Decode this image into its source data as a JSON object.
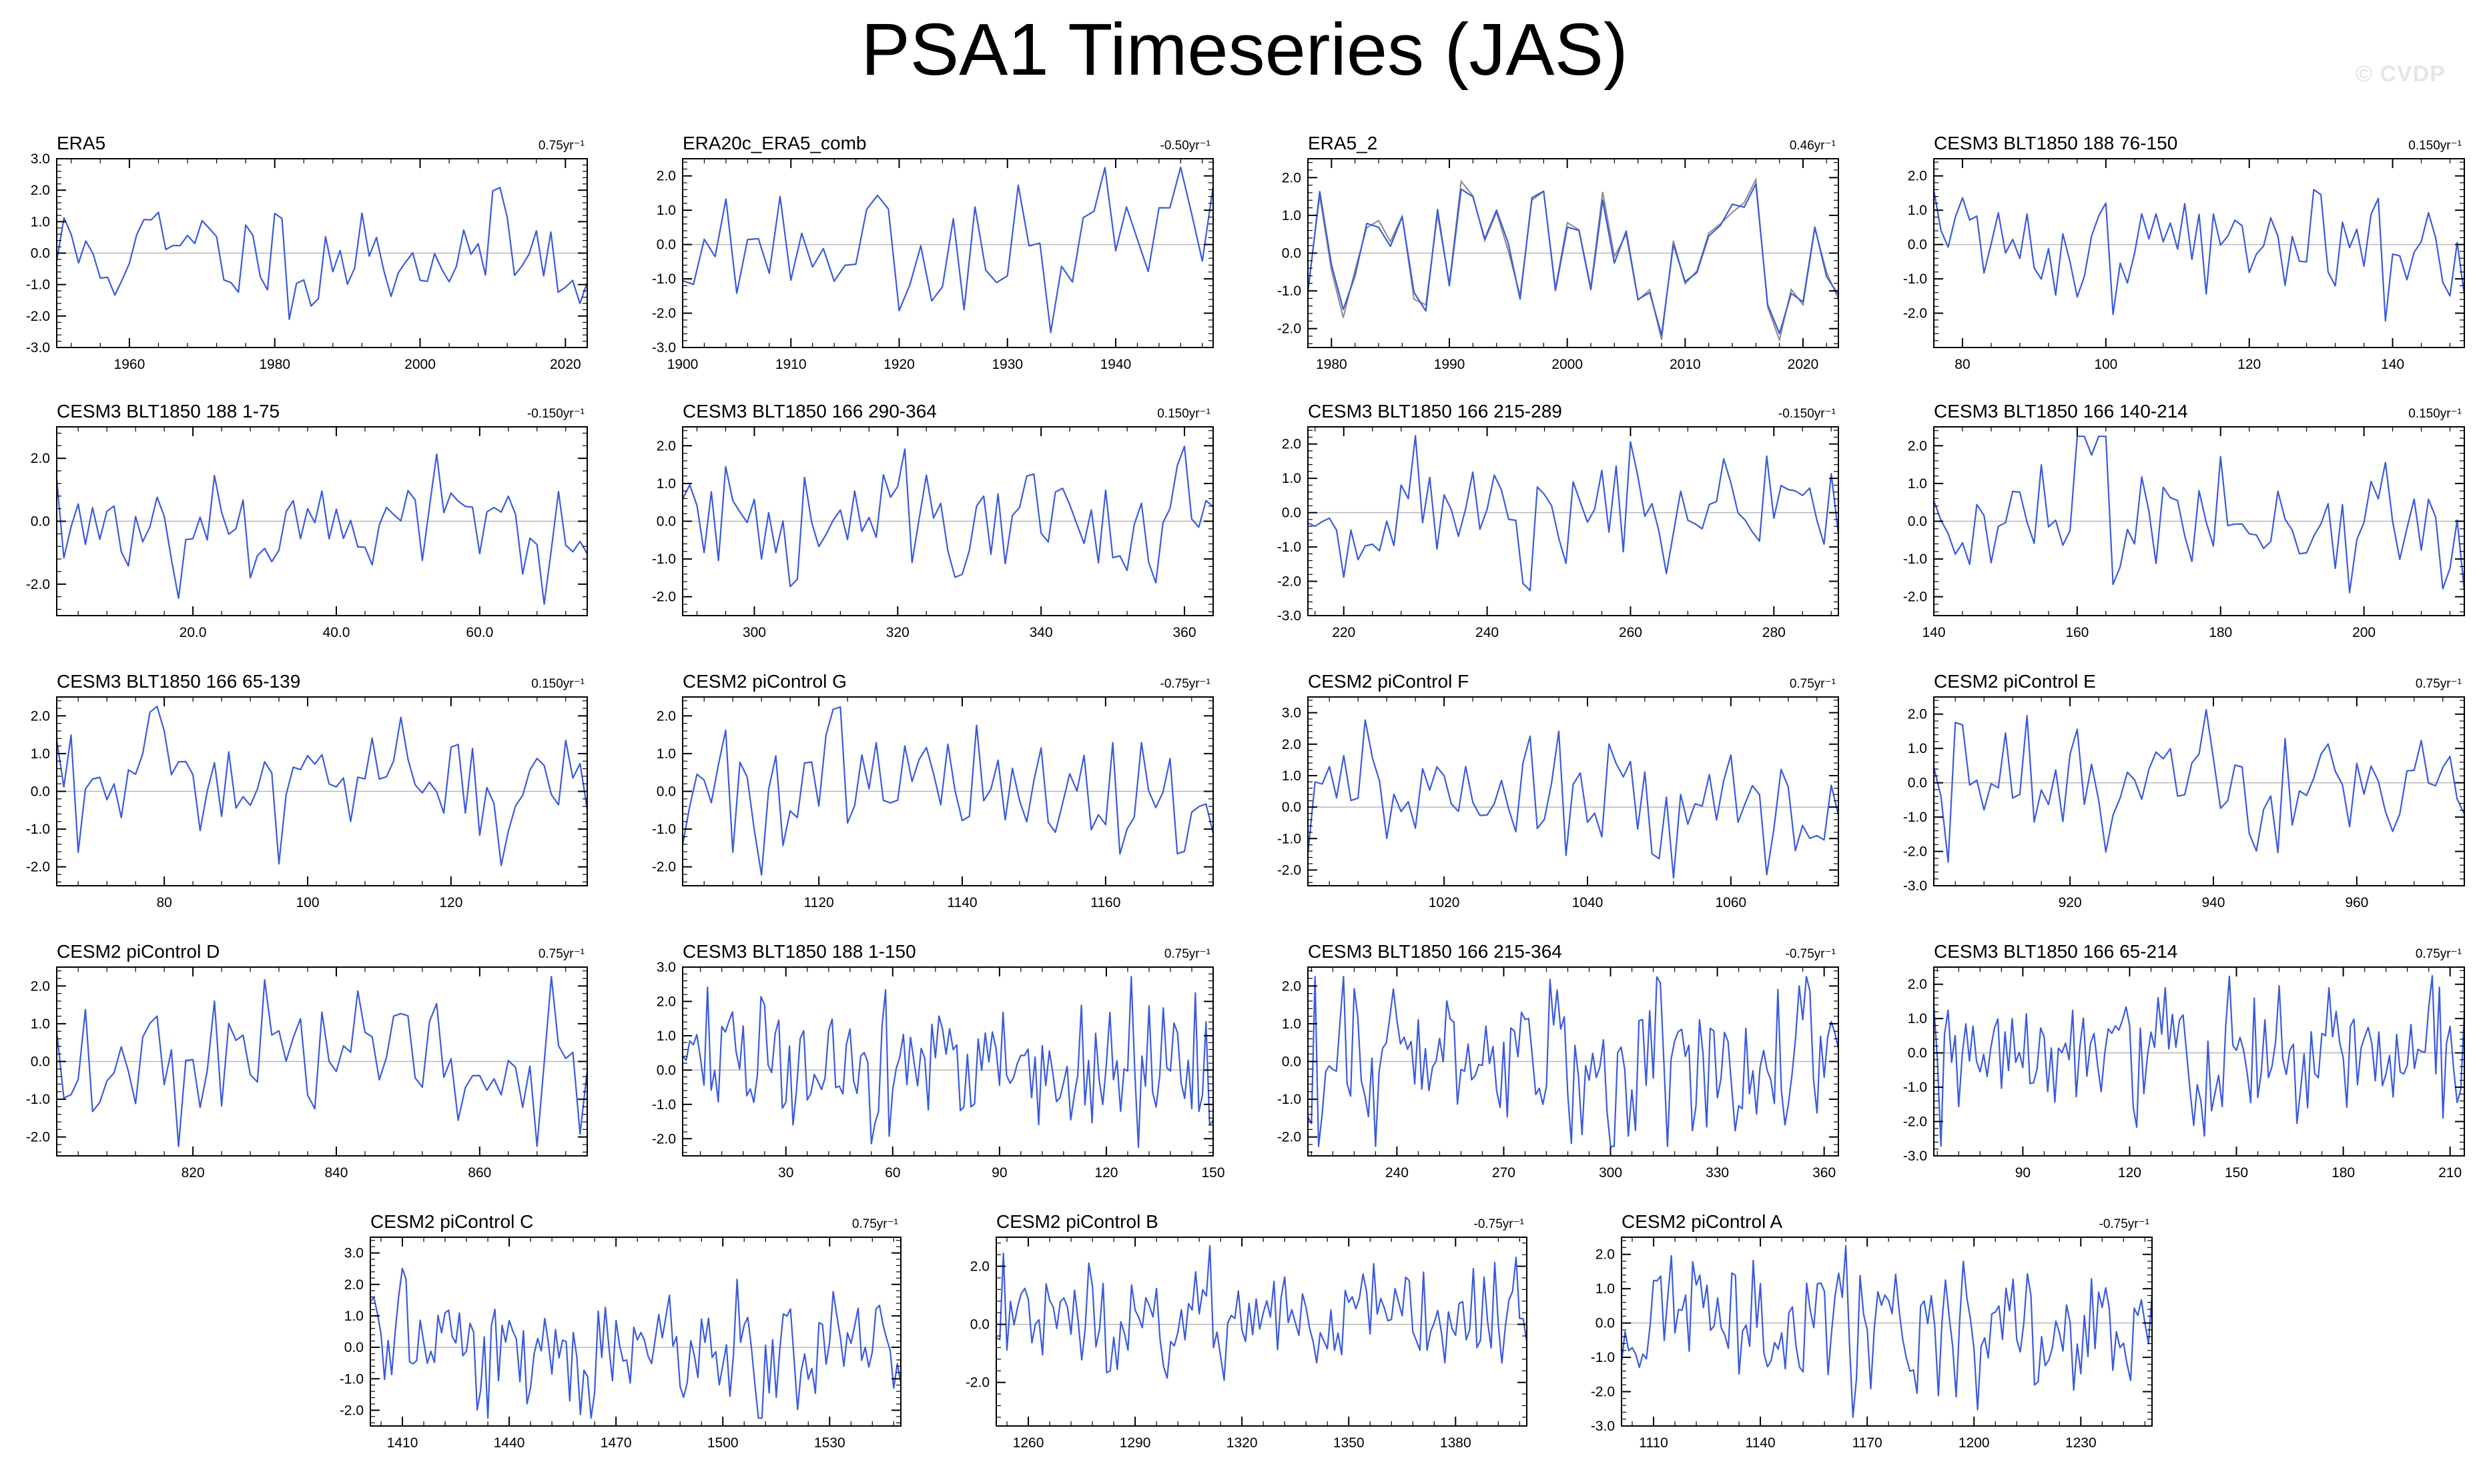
{
  "title": "PSA1 Timeseries (JAS)",
  "watermark": "© CVDP",
  "colors": {
    "series": "#3b5bdb",
    "secondary_series": "#8a8a8a",
    "zero_line": "#b8b8b8",
    "axis": "#000000"
  },
  "chart_data": [
    {
      "type": "line",
      "title": "ERA5",
      "trend": "0.75yr⁻¹",
      "xlim": [
        1950,
        2023
      ],
      "ylim": [
        -3,
        3
      ],
      "xticks": [
        1960,
        1980,
        2000,
        2020
      ],
      "xtick_labels": [
        "1960",
        "1980",
        "2000",
        "2020"
      ],
      "yticks": [
        -3,
        -2,
        -1,
        0,
        1,
        2,
        3
      ],
      "ytick_labels": [
        "-3.0",
        "-2.0",
        "-1.0",
        "0.0",
        "1.0",
        "2.0",
        "3.0"
      ],
      "seed": 11,
      "amp": 0.9,
      "series": [
        {
          "name": "",
          "x_start": 1950,
          "x_end": 2023
        }
      ]
    },
    {
      "type": "line",
      "title": "ERA20c_ERA5_comb",
      "trend": "-0.50yr⁻¹",
      "xlim": [
        1900,
        1949
      ],
      "ylim": [
        -3,
        2.5
      ],
      "xticks": [
        1900,
        1910,
        1920,
        1930,
        1940
      ],
      "xtick_labels": [
        "1900",
        "1910",
        "1920",
        "1930",
        "1940"
      ],
      "yticks": [
        -3,
        -2,
        -1,
        0,
        1,
        2
      ],
      "ytick_labels": [
        "-3.0",
        "-2.0",
        "-1.0",
        "0.0",
        "1.0",
        "2.0"
      ],
      "seed": 23,
      "amp": 0.95,
      "series": [
        {
          "name": "",
          "x_start": 1900,
          "x_end": 1949
        }
      ]
    },
    {
      "type": "line",
      "title": "ERA5_2",
      "trend": "0.46yr⁻¹",
      "xlim": [
        1978,
        2023
      ],
      "ylim": [
        -2.5,
        2.5
      ],
      "xticks": [
        1980,
        1990,
        2000,
        2010,
        2020
      ],
      "xtick_labels": [
        "1980",
        "1990",
        "2000",
        "2010",
        "2020"
      ],
      "yticks": [
        -2,
        -1,
        0,
        1,
        2
      ],
      "ytick_labels": [
        "-2.0",
        "-1.0",
        "0.0",
        "1.0",
        "2.0"
      ],
      "seed": 37,
      "amp": 0.95,
      "overlay": true,
      "series": [
        {
          "name": "",
          "x_start": 1978,
          "x_end": 2023
        }
      ]
    },
    {
      "type": "line",
      "title": "CESM3 BLT1850 188 76-150",
      "trend": "0.150yr⁻¹",
      "xlim": [
        76,
        150
      ],
      "ylim": [
        -3,
        2.5
      ],
      "xticks": [
        80,
        100,
        120,
        140
      ],
      "xtick_labels": [
        "80",
        "100",
        "120",
        "140"
      ],
      "yticks": [
        -2,
        -1,
        0,
        1,
        2
      ],
      "ytick_labels": [
        "-2.0",
        "-1.0",
        "0.0",
        "1.0",
        "2.0"
      ],
      "seed": 41,
      "amp": 0.95,
      "series": [
        {
          "name": "",
          "x_start": 76,
          "x_end": 150
        }
      ]
    },
    {
      "type": "line",
      "title": "CESM3 BLT1850 188 1-75",
      "trend": "-0.150yr⁻¹",
      "xlim": [
        1,
        75
      ],
      "ylim": [
        -3,
        3
      ],
      "xticks": [
        20,
        40,
        60
      ],
      "xtick_labels": [
        "20.0",
        "40.0",
        "60.0"
      ],
      "yticks": [
        -2,
        0,
        2
      ],
      "ytick_labels": [
        "-2.0",
        "0.0",
        "2.0"
      ],
      "seed": 53,
      "amp": 0.95,
      "series": [
        {
          "name": "",
          "x_start": 1,
          "x_end": 75
        }
      ]
    },
    {
      "type": "line",
      "title": "CESM3 BLT1850 166 290-364",
      "trend": "0.150yr⁻¹",
      "xlim": [
        290,
        364
      ],
      "ylim": [
        -2.5,
        2.5
      ],
      "xticks": [
        300,
        320,
        340,
        360
      ],
      "xtick_labels": [
        "300",
        "320",
        "340",
        "360"
      ],
      "yticks": [
        -2,
        -1,
        0,
        1,
        2
      ],
      "ytick_labels": [
        "-2.0",
        "-1.0",
        "0.0",
        "1.0",
        "2.0"
      ],
      "seed": 61,
      "amp": 0.95,
      "series": [
        {
          "name": "",
          "x_start": 290,
          "x_end": 364
        }
      ]
    },
    {
      "type": "line",
      "title": "CESM3 BLT1850 166 215-289",
      "trend": "-0.150yr⁻¹",
      "xlim": [
        215,
        289
      ],
      "ylim": [
        -3,
        2.5
      ],
      "xticks": [
        220,
        240,
        260,
        280
      ],
      "xtick_labels": [
        "220",
        "240",
        "260",
        "280"
      ],
      "yticks": [
        -3,
        -2,
        -1,
        0,
        1,
        2
      ],
      "ytick_labels": [
        "-3.0",
        "-2.0",
        "-1.0",
        "0.0",
        "1.0",
        "2.0"
      ],
      "seed": 71,
      "amp": 0.95,
      "series": [
        {
          "name": "",
          "x_start": 215,
          "x_end": 289
        }
      ]
    },
    {
      "type": "line",
      "title": "CESM3 BLT1850 166 140-214",
      "trend": "0.150yr⁻¹",
      "xlim": [
        140,
        214
      ],
      "ylim": [
        -2.5,
        2.5
      ],
      "xticks": [
        140,
        160,
        180,
        200
      ],
      "xtick_labels": [
        "140",
        "160",
        "180",
        "200"
      ],
      "yticks": [
        -2,
        -1,
        0,
        1,
        2
      ],
      "ytick_labels": [
        "-2.0",
        "-1.0",
        "0.0",
        "1.0",
        "2.0"
      ],
      "seed": 83,
      "amp": 0.95,
      "series": [
        {
          "name": "",
          "x_start": 140,
          "x_end": 214
        }
      ]
    },
    {
      "type": "line",
      "title": "CESM3 BLT1850 166 65-139",
      "trend": "0.150yr⁻¹",
      "xlim": [
        65,
        139
      ],
      "ylim": [
        -2.5,
        2.5
      ],
      "xticks": [
        80,
        100,
        120
      ],
      "xtick_labels": [
        "80",
        "100",
        "120"
      ],
      "yticks": [
        -2,
        -1,
        0,
        1,
        2
      ],
      "ytick_labels": [
        "-2.0",
        "-1.0",
        "0.0",
        "1.0",
        "2.0"
      ],
      "seed": 97,
      "amp": 0.95,
      "series": [
        {
          "name": "",
          "x_start": 65,
          "x_end": 139
        }
      ]
    },
    {
      "type": "line",
      "title": "CESM2 piControl G",
      "trend": "-0.75yr⁻¹",
      "xlim": [
        1101,
        1175
      ],
      "ylim": [
        -2.5,
        2.5
      ],
      "xticks": [
        1120,
        1140,
        1160
      ],
      "xtick_labels": [
        "1120",
        "1140",
        "1160"
      ],
      "yticks": [
        -2,
        -1,
        0,
        1,
        2
      ],
      "ytick_labels": [
        "-2.0",
        "-1.0",
        "0.0",
        "1.0",
        "2.0"
      ],
      "seed": 101,
      "amp": 0.95,
      "series": [
        {
          "name": "",
          "x_start": 1101,
          "x_end": 1175
        }
      ]
    },
    {
      "type": "line",
      "title": "CESM2 piControl F",
      "trend": "0.75yr⁻¹",
      "xlim": [
        1001,
        1075
      ],
      "ylim": [
        -2.5,
        3.5
      ],
      "xticks": [
        1020,
        1040,
        1060
      ],
      "xtick_labels": [
        "1020",
        "1040",
        "1060"
      ],
      "yticks": [
        -2,
        -1,
        0,
        1,
        2,
        3
      ],
      "ytick_labels": [
        "-2.0",
        "-1.0",
        "0.0",
        "1.0",
        "2.0",
        "3.0"
      ],
      "seed": 113,
      "amp": 0.95,
      "series": [
        {
          "name": "",
          "x_start": 1001,
          "x_end": 1075
        }
      ]
    },
    {
      "type": "line",
      "title": "CESM2 piControl E",
      "trend": "0.75yr⁻¹",
      "xlim": [
        901,
        975
      ],
      "ylim": [
        -3,
        2.5
      ],
      "xticks": [
        920,
        940,
        960
      ],
      "xtick_labels": [
        "920",
        "940",
        "960"
      ],
      "yticks": [
        -3,
        -2,
        -1,
        0,
        1,
        2
      ],
      "ytick_labels": [
        "-3.0",
        "-2.0",
        "-1.0",
        "0.0",
        "1.0",
        "2.0"
      ],
      "seed": 127,
      "amp": 0.95,
      "series": [
        {
          "name": "",
          "x_start": 901,
          "x_end": 975
        }
      ]
    },
    {
      "type": "line",
      "title": "CESM2 piControl D",
      "trend": "0.75yr⁻¹",
      "xlim": [
        801,
        875
      ],
      "ylim": [
        -2.5,
        2.5
      ],
      "xticks": [
        820,
        840,
        860
      ],
      "xtick_labels": [
        "820",
        "840",
        "860"
      ],
      "yticks": [
        -2,
        -1,
        0,
        1,
        2
      ],
      "ytick_labels": [
        "-2.0",
        "-1.0",
        "0.0",
        "1.0",
        "2.0"
      ],
      "seed": 131,
      "amp": 0.95,
      "series": [
        {
          "name": "",
          "x_start": 801,
          "x_end": 875
        }
      ]
    },
    {
      "type": "line",
      "title": "CESM3 BLT1850 188 1-150",
      "trend": "0.75yr⁻¹",
      "xlim": [
        1,
        150
      ],
      "ylim": [
        -2.5,
        3
      ],
      "xticks": [
        30,
        60,
        90,
        120,
        150
      ],
      "xtick_labels": [
        "30",
        "60",
        "90",
        "120",
        "150"
      ],
      "yticks": [
        -2,
        -1,
        0,
        1,
        2,
        3
      ],
      "ytick_labels": [
        "-2.0",
        "-1.0",
        "0.0",
        "1.0",
        "2.0",
        "3.0"
      ],
      "seed": 149,
      "amp": 0.95,
      "series": [
        {
          "name": "",
          "x_start": 1,
          "x_end": 150
        }
      ]
    },
    {
      "type": "line",
      "title": "CESM3 BLT1850 166 215-364",
      "trend": "-0.75yr⁻¹",
      "xlim": [
        215,
        364
      ],
      "ylim": [
        -2.5,
        2.5
      ],
      "xticks": [
        240,
        270,
        300,
        330,
        360
      ],
      "xtick_labels": [
        "240",
        "270",
        "300",
        "330",
        "360"
      ],
      "yticks": [
        -2,
        -1,
        0,
        1,
        2
      ],
      "ytick_labels": [
        "-2.0",
        "-1.0",
        "0.0",
        "1.0",
        "2.0"
      ],
      "seed": 157,
      "amp": 0.95,
      "series": [
        {
          "name": "",
          "x_start": 215,
          "x_end": 364
        }
      ]
    },
    {
      "type": "line",
      "title": "CESM3 BLT1850 166 65-214",
      "trend": "0.75yr⁻¹",
      "xlim": [
        65,
        214
      ],
      "ylim": [
        -3,
        2.5
      ],
      "xticks": [
        90,
        120,
        150,
        180,
        210
      ],
      "xtick_labels": [
        "90",
        "120",
        "150",
        "180",
        "210"
      ],
      "yticks": [
        -3,
        -2,
        -1,
        0,
        1,
        2
      ],
      "ytick_labels": [
        "-3.0",
        "-2.0",
        "-1.0",
        "0.0",
        "1.0",
        "2.0"
      ],
      "seed": 163,
      "amp": 0.95,
      "series": [
        {
          "name": "",
          "x_start": 65,
          "x_end": 214
        }
      ]
    },
    {
      "type": "line",
      "title": "CESM2 piControl C",
      "trend": "0.75yr⁻¹",
      "xlim": [
        1401,
        1550
      ],
      "ylim": [
        -2.5,
        3.5
      ],
      "xticks": [
        1410,
        1440,
        1470,
        1500,
        1530
      ],
      "xtick_labels": [
        "1410",
        "1440",
        "1470",
        "1500",
        "1530"
      ],
      "yticks": [
        -2,
        -1,
        0,
        1,
        2,
        3
      ],
      "ytick_labels": [
        "-2.0",
        "-1.0",
        "0.0",
        "1.0",
        "2.0",
        "3.0"
      ],
      "seed": 173,
      "amp": 0.95,
      "series": [
        {
          "name": "",
          "x_start": 1401,
          "x_end": 1550
        }
      ]
    },
    {
      "type": "line",
      "title": "CESM2 piControl B",
      "trend": "-0.75yr⁻¹",
      "xlim": [
        1251,
        1400
      ],
      "ylim": [
        -3.5,
        3
      ],
      "xticks": [
        1260,
        1290,
        1320,
        1350,
        1380
      ],
      "xtick_labels": [
        "1260",
        "1290",
        "1320",
        "1350",
        "1380"
      ],
      "yticks": [
        -2,
        0,
        2
      ],
      "ytick_labels": [
        "-2.0",
        "0.0",
        "2.0"
      ],
      "seed": 181,
      "amp": 0.9,
      "series": [
        {
          "name": "",
          "x_start": 1251,
          "x_end": 1400
        }
      ]
    },
    {
      "type": "line",
      "title": "CESM2 piControl A",
      "trend": "-0.75yr⁻¹",
      "xlim": [
        1101,
        1250
      ],
      "ylim": [
        -3,
        2.5
      ],
      "xticks": [
        1110,
        1140,
        1170,
        1200,
        1230
      ],
      "xtick_labels": [
        "1110",
        "1140",
        "1170",
        "1200",
        "1230"
      ],
      "yticks": [
        -3,
        -2,
        -1,
        0,
        1,
        2
      ],
      "ytick_labels": [
        "-3.0",
        "-2.0",
        "-1.0",
        "0.0",
        "1.0",
        "2.0"
      ],
      "seed": 191,
      "amp": 0.95,
      "series": [
        {
          "name": "",
          "x_start": 1101,
          "x_end": 1250
        }
      ]
    }
  ]
}
